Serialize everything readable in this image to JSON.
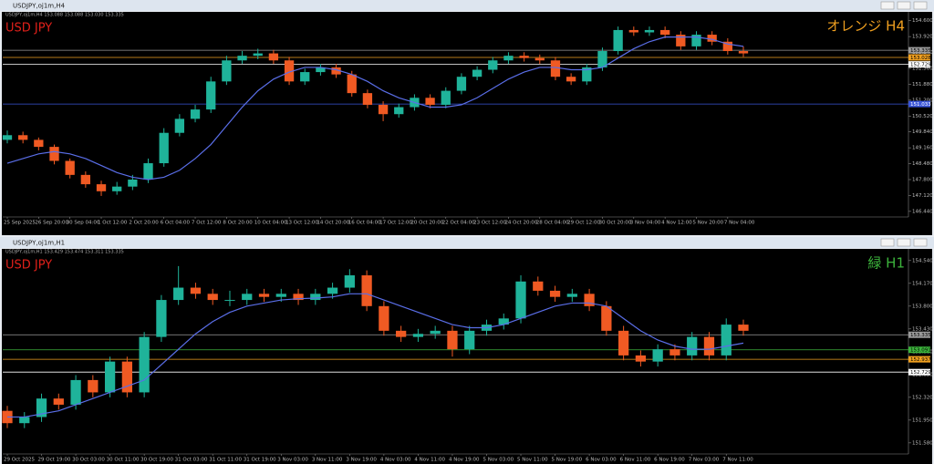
{
  "window_titles": [
    "USDJPY,oj1m,H4",
    "USDJPY,oj1m,H1"
  ],
  "chart_data": [
    {
      "type": "candlestick",
      "header": "USDJPY,oj1m,H4  153.088 153.088 153.030 153.335",
      "title": "USD JPY",
      "title_color": "#e0201a",
      "subtitle": "オレンジ H4",
      "subtitle_color": "#f0a020",
      "up_color": "#1fb39a",
      "down_color": "#f05a23",
      "ma_color": "#5a6ee8",
      "ylim": [
        146.2,
        154.9
      ],
      "yticks": [
        {
          "value": 146.44,
          "label": "146.440"
        },
        {
          "value": 147.12,
          "label": "147.120"
        },
        {
          "value": 147.8,
          "label": "147.800"
        },
        {
          "value": 148.48,
          "label": "148.480"
        },
        {
          "value": 149.16,
          "label": "149.160"
        },
        {
          "value": 149.84,
          "label": "149.840"
        },
        {
          "value": 150.52,
          "label": "150.520"
        },
        {
          "value": 151.2,
          "label": "151.200"
        },
        {
          "value": 151.88,
          "label": "151.880"
        },
        {
          "value": 152.56,
          "label": "152.560"
        },
        {
          "value": 153.24,
          "label": "153.240"
        },
        {
          "value": 153.92,
          "label": "153.920"
        },
        {
          "value": 154.6,
          "label": "154.600"
        }
      ],
      "hlines": [
        {
          "value": 153.335,
          "label": "153.335",
          "color": "#9a9a9a"
        },
        {
          "value": 153.028,
          "label": "153.028",
          "color": "#f0a020"
        },
        {
          "value": 152.729,
          "label": "152.729",
          "color": "#ffffff"
        },
        {
          "value": 151.033,
          "label": "151.033",
          "color": "#3a55d8"
        }
      ],
      "categories": [
        "25 Sep 2025",
        null,
        "26 Sep 20:00",
        null,
        "30 Sep 04:00",
        null,
        "1 Oct 12:00",
        null,
        "2 Oct 20:00",
        null,
        "6 Oct 04:00",
        null,
        "7 Oct 12:00",
        null,
        "8 Oct 20:00",
        null,
        "10 Oct 04:00",
        null,
        "13 Oct 12:00",
        null,
        "14 Oct 20:00",
        null,
        "16 Oct 04:00",
        null,
        "17 Oct 12:00",
        null,
        "20 Oct 20:00",
        null,
        "22 Oct 04:00",
        null,
        "23 Oct 12:00",
        null,
        "24 Oct 20:00",
        null,
        "28 Oct 04:00",
        null,
        "29 Oct 12:00",
        null,
        "30 Oct 20:00",
        null,
        "3 Nov 04:00",
        null,
        "4 Nov 12:00",
        null,
        "5 Nov 20:00",
        null,
        "7 Nov 04:00",
        null
      ],
      "candles": [
        [
          149.5,
          149.9,
          149.35,
          149.7
        ],
        [
          149.7,
          149.85,
          149.35,
          149.5
        ],
        [
          149.5,
          149.6,
          149.05,
          149.2
        ],
        [
          149.2,
          149.3,
          148.45,
          148.6
        ],
        [
          148.6,
          148.7,
          147.85,
          148.0
        ],
        [
          148.0,
          148.15,
          147.45,
          147.6
        ],
        [
          147.6,
          147.75,
          147.1,
          147.3
        ],
        [
          147.3,
          147.7,
          147.15,
          147.5
        ],
        [
          147.5,
          148.0,
          147.35,
          147.8
        ],
        [
          147.8,
          148.7,
          147.65,
          148.5
        ],
        [
          148.5,
          150.0,
          148.35,
          149.8
        ],
        [
          149.8,
          150.6,
          149.65,
          150.4
        ],
        [
          150.4,
          151.0,
          150.25,
          150.8
        ],
        [
          150.8,
          152.2,
          150.65,
          152.0
        ],
        [
          152.0,
          153.1,
          151.85,
          152.9
        ],
        [
          152.9,
          153.3,
          152.75,
          153.1
        ],
        [
          153.1,
          153.4,
          152.95,
          153.2
        ],
        [
          153.2,
          153.35,
          152.75,
          152.9
        ],
        [
          152.9,
          153.05,
          151.85,
          152.0
        ],
        [
          152.0,
          152.55,
          151.85,
          152.4
        ],
        [
          152.4,
          152.75,
          152.25,
          152.6
        ],
        [
          152.6,
          152.75,
          152.15,
          152.3
        ],
        [
          152.3,
          152.45,
          151.35,
          151.5
        ],
        [
          151.5,
          151.65,
          150.85,
          151.0
        ],
        [
          151.0,
          151.15,
          150.3,
          150.6
        ],
        [
          150.6,
          151.05,
          150.45,
          150.9
        ],
        [
          150.9,
          151.45,
          150.75,
          151.3
        ],
        [
          151.3,
          151.45,
          150.85,
          151.0
        ],
        [
          151.0,
          151.75,
          150.85,
          151.6
        ],
        [
          151.6,
          152.35,
          151.45,
          152.2
        ],
        [
          152.2,
          152.65,
          152.05,
          152.5
        ],
        [
          152.5,
          153.05,
          152.35,
          152.9
        ],
        [
          152.9,
          153.25,
          152.75,
          153.1
        ],
        [
          153.1,
          153.25,
          152.85,
          153.0
        ],
        [
          153.0,
          153.15,
          152.75,
          152.9
        ],
        [
          152.9,
          153.05,
          152.05,
          152.2
        ],
        [
          152.2,
          152.35,
          151.85,
          152.0
        ],
        [
          152.0,
          152.75,
          151.85,
          152.6
        ],
        [
          152.6,
          153.45,
          152.45,
          153.3
        ],
        [
          153.3,
          154.35,
          153.15,
          154.2
        ],
        [
          154.2,
          154.35,
          153.95,
          154.1
        ],
        [
          154.1,
          154.35,
          153.95,
          154.2
        ],
        [
          154.2,
          154.35,
          153.85,
          154.0
        ],
        [
          154.0,
          154.15,
          153.35,
          153.5
        ],
        [
          153.5,
          154.15,
          153.35,
          154.0
        ],
        [
          154.0,
          154.15,
          153.55,
          153.7
        ],
        [
          153.7,
          153.85,
          153.15,
          153.3
        ],
        [
          153.3,
          153.5,
          153.05,
          153.2
        ]
      ],
      "ma": [
        148.5,
        148.7,
        148.9,
        149.0,
        148.9,
        148.7,
        148.4,
        148.1,
        147.9,
        147.8,
        147.9,
        148.2,
        148.7,
        149.3,
        150.1,
        150.9,
        151.6,
        152.1,
        152.4,
        152.6,
        152.6,
        152.5,
        152.3,
        152.0,
        151.6,
        151.3,
        151.1,
        150.9,
        150.9,
        151.0,
        151.3,
        151.7,
        152.1,
        152.4,
        152.6,
        152.6,
        152.5,
        152.5,
        152.6,
        153.0,
        153.4,
        153.7,
        153.9,
        153.9,
        153.9,
        153.8,
        153.6,
        153.5
      ]
    },
    {
      "type": "candlestick",
      "header": "USDJPY,oj1m,H1  153.429 153.474 153.311 153.335",
      "title": "USD JPY",
      "title_color": "#e0201a",
      "subtitle": "緑 H1",
      "subtitle_color": "#3cb43c",
      "up_color": "#1fb39a",
      "down_color": "#f05a23",
      "ma_color": "#5a6ee8",
      "ylim": [
        151.4,
        154.7
      ],
      "yticks": [
        {
          "value": 151.58,
          "label": "151.580"
        },
        {
          "value": 151.95,
          "label": "151.950"
        },
        {
          "value": 152.32,
          "label": "152.320"
        },
        {
          "value": 152.69,
          "label": "152.690"
        },
        {
          "value": 153.06,
          "label": "153.060"
        },
        {
          "value": 153.43,
          "label": "153.430"
        },
        {
          "value": 153.8,
          "label": "153.800"
        },
        {
          "value": 154.17,
          "label": "154.170"
        },
        {
          "value": 154.54,
          "label": "154.540"
        }
      ],
      "hlines": [
        {
          "value": 153.335,
          "label": "153.335",
          "color": "#9a9a9a"
        },
        {
          "value": 153.091,
          "label": "153.091",
          "color": "#3cb43c"
        },
        {
          "value": 152.937,
          "label": "152.937",
          "color": "#f0a020"
        },
        {
          "value": 152.729,
          "label": "152.729",
          "color": "#ffffff"
        }
      ],
      "categories": [
        "29 Oct 2025",
        null,
        "29 Oct 19:00",
        null,
        "30 Oct 03:00",
        null,
        "30 Oct 11:00",
        null,
        "30 Oct 19:00",
        null,
        "31 Oct 03:00",
        null,
        "31 Oct 11:00",
        null,
        "31 Oct 19:00",
        null,
        "3 Nov 03:00",
        null,
        "3 Nov 11:00",
        null,
        "3 Nov 19:00",
        null,
        "4 Nov 03:00",
        null,
        "4 Nov 11:00",
        null,
        "4 Nov 19:00",
        null,
        "5 Nov 03:00",
        null,
        "5 Nov 11:00",
        null,
        "5 Nov 19:00",
        null,
        "6 Nov 03:00",
        null,
        "6 Nov 11:00",
        null,
        "6 Nov 19:00",
        null,
        "7 Nov 03:00",
        null,
        "7 Nov 11:00",
        null
      ],
      "candles": [
        [
          152.1,
          152.18,
          151.82,
          151.9
        ],
        [
          151.9,
          152.08,
          151.82,
          152.0
        ],
        [
          152.0,
          152.38,
          151.92,
          152.3
        ],
        [
          152.3,
          152.38,
          152.12,
          152.2
        ],
        [
          152.2,
          152.68,
          152.12,
          152.6
        ],
        [
          152.6,
          152.68,
          152.32,
          152.4
        ],
        [
          152.4,
          152.98,
          152.32,
          152.9
        ],
        [
          152.9,
          152.98,
          152.32,
          152.4
        ],
        [
          152.4,
          153.38,
          152.32,
          153.3
        ],
        [
          153.3,
          153.98,
          153.22,
          153.9
        ],
        [
          153.9,
          154.45,
          153.82,
          154.1
        ],
        [
          154.1,
          154.18,
          153.92,
          154.0
        ],
        [
          154.0,
          154.08,
          153.82,
          153.9
        ],
        [
          153.9,
          154.05,
          153.8,
          153.9
        ],
        [
          153.9,
          154.08,
          153.82,
          154.0
        ],
        [
          154.0,
          154.08,
          153.87,
          153.95
        ],
        [
          153.95,
          154.08,
          153.87,
          154.0
        ],
        [
          154.0,
          154.08,
          153.82,
          153.9
        ],
        [
          153.9,
          154.08,
          153.82,
          154.0
        ],
        [
          154.0,
          154.18,
          153.92,
          154.1
        ],
        [
          154.1,
          154.4,
          154.02,
          154.3
        ],
        [
          154.3,
          154.38,
          153.72,
          153.8
        ],
        [
          153.8,
          153.88,
          153.32,
          153.4
        ],
        [
          153.4,
          153.48,
          153.22,
          153.3
        ],
        [
          153.3,
          153.43,
          153.22,
          153.35
        ],
        [
          153.35,
          153.48,
          153.27,
          153.4
        ],
        [
          153.4,
          153.48,
          152.98,
          153.1
        ],
        [
          153.1,
          153.48,
          153.02,
          153.4
        ],
        [
          153.4,
          153.58,
          153.32,
          153.5
        ],
        [
          153.5,
          153.68,
          153.42,
          153.6
        ],
        [
          153.6,
          154.3,
          153.52,
          154.2
        ],
        [
          154.2,
          154.28,
          153.97,
          154.05
        ],
        [
          154.05,
          154.13,
          153.87,
          153.95
        ],
        [
          153.95,
          154.08,
          153.87,
          154.0
        ],
        [
          154.0,
          154.08,
          153.72,
          153.8
        ],
        [
          153.8,
          153.88,
          153.32,
          153.4
        ],
        [
          153.4,
          153.48,
          152.92,
          153.0
        ],
        [
          153.0,
          153.08,
          152.82,
          152.9
        ],
        [
          152.9,
          153.18,
          152.82,
          153.1
        ],
        [
          153.1,
          153.18,
          152.92,
          153.0
        ],
        [
          153.0,
          153.38,
          152.92,
          153.3
        ],
        [
          153.3,
          153.38,
          152.92,
          153.0
        ],
        [
          153.0,
          153.6,
          152.92,
          153.5
        ],
        [
          153.5,
          153.58,
          153.32,
          153.4
        ]
      ],
      "ma": [
        152.0,
        152.0,
        152.05,
        152.1,
        152.2,
        152.3,
        152.4,
        152.5,
        152.6,
        152.85,
        153.1,
        153.35,
        153.55,
        153.7,
        153.8,
        153.85,
        153.9,
        153.92,
        153.93,
        153.95,
        154.0,
        154.0,
        153.9,
        153.8,
        153.7,
        153.6,
        153.5,
        153.45,
        153.45,
        153.5,
        153.6,
        153.7,
        153.8,
        153.85,
        153.85,
        153.8,
        153.6,
        153.4,
        153.25,
        153.15,
        153.1,
        153.1,
        153.15,
        153.2
      ]
    }
  ]
}
